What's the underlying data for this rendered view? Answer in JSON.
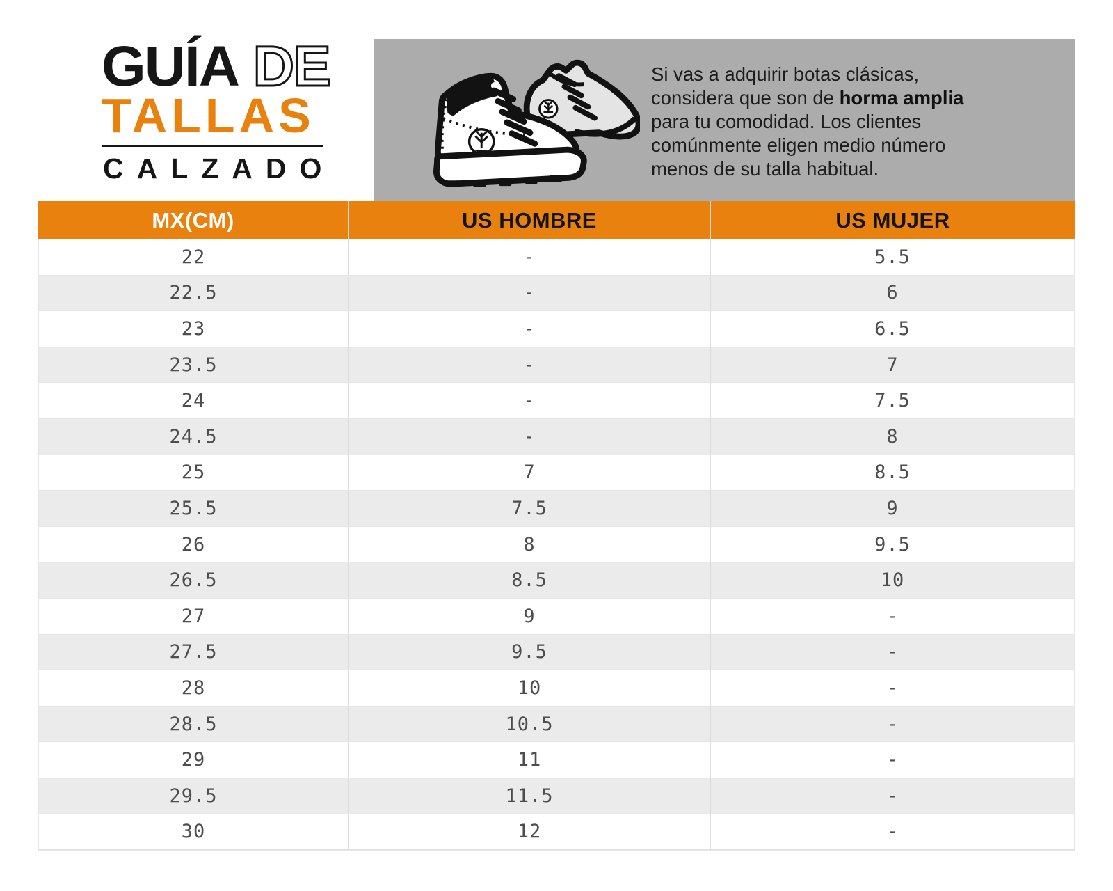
{
  "page_title": "Guía de tallas calzado",
  "logo": {
    "title_solid": "GUÍA",
    "title_outline": "DE",
    "title_accent": "TALLAS",
    "subtitle": "CALZADO"
  },
  "banner": {
    "illustration": "boots-icon",
    "line1": "Si vas a adquirir botas clásicas,",
    "line2_normal": "considera que son de ",
    "line2_bold": "horma amplia",
    "line3": "para tu comodidad. Los clientes",
    "line4": "comúnmente eligen medio número",
    "line5": "menos de su talla habitual."
  },
  "table": {
    "columns": [
      "MX(CM)",
      "US HOMBRE",
      "US MUJER"
    ],
    "rows": [
      [
        "22",
        "-",
        "5.5"
      ],
      [
        "22.5",
        "-",
        "6"
      ],
      [
        "23",
        "-",
        "6.5"
      ],
      [
        "23.5",
        "-",
        "7"
      ],
      [
        "24",
        "-",
        "7.5"
      ],
      [
        "24.5",
        "-",
        "8"
      ],
      [
        "25",
        "7",
        "8.5"
      ],
      [
        "25.5",
        "7.5",
        "9"
      ],
      [
        "26",
        "8",
        "9.5"
      ],
      [
        "26.5",
        "8.5",
        "10"
      ],
      [
        "27",
        "9",
        "-"
      ],
      [
        "27.5",
        "9.5",
        "-"
      ],
      [
        "28",
        "10",
        "-"
      ],
      [
        "28.5",
        "10.5",
        "-"
      ],
      [
        "29",
        "11",
        "-"
      ],
      [
        "29.5",
        "11.5",
        "-"
      ],
      [
        "30",
        "12",
        "-"
      ]
    ]
  },
  "colors": {
    "accent_orange": "#E8810E",
    "banner_gray": "#ACACAC",
    "row_alt_gray": "#EBEBEB",
    "cell_text_gray": "#4D4D4D",
    "logo_black": "#161616"
  }
}
